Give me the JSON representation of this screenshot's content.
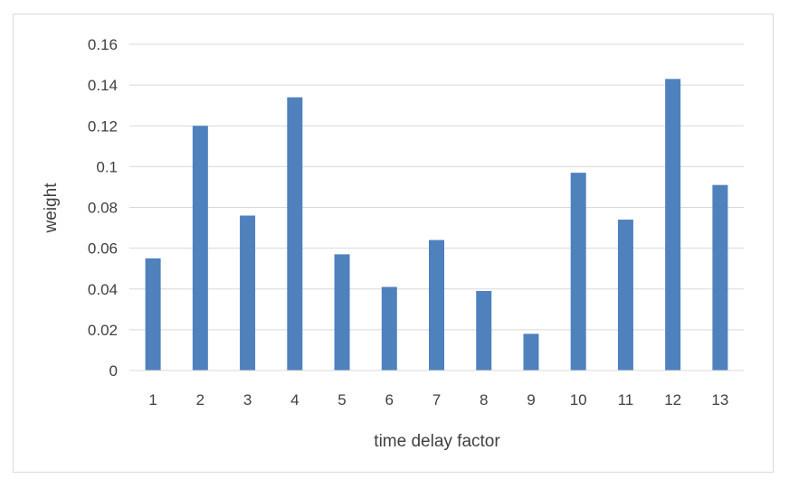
{
  "chart_data": {
    "type": "bar",
    "categories": [
      "1",
      "2",
      "3",
      "4",
      "5",
      "6",
      "7",
      "8",
      "9",
      "10",
      "11",
      "12",
      "13"
    ],
    "values": [
      0.055,
      0.12,
      0.076,
      0.134,
      0.057,
      0.041,
      0.064,
      0.039,
      0.018,
      0.097,
      0.074,
      0.143,
      0.091
    ],
    "title": "",
    "xlabel": "time delay factor",
    "ylabel": "weight",
    "ylim": [
      0,
      0.16
    ],
    "yticks": [
      "0",
      "0.02",
      "0.04",
      "0.06",
      "0.08",
      "0.1",
      "0.12",
      "0.14",
      "0.16"
    ],
    "grid": "horizontal",
    "legend": "none",
    "bar_color": "#4f81bd",
    "grid_color": "#d9d9d9"
  }
}
